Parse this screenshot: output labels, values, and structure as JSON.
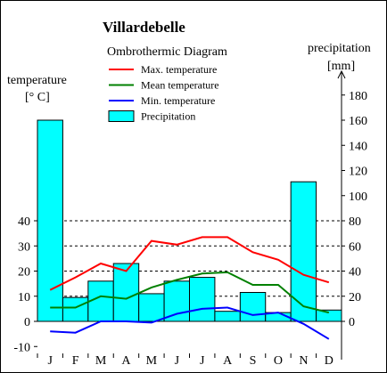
{
  "chart_data": {
    "type": "bar+line",
    "title": "Villardebelle",
    "subtitle": "Ombrothermic Diagram",
    "left_axis": {
      "label_line1": "temperature",
      "label_line2": "[° C]",
      "range": [
        -10,
        40
      ],
      "ticks": [
        -10,
        0,
        10,
        20,
        30,
        40
      ],
      "tick_labels": [
        "-10",
        "0",
        "10",
        "20",
        "30",
        "40"
      ]
    },
    "right_axis": {
      "label_line1": "precipitation",
      "label_line2": "[mm]",
      "range": [
        0,
        180
      ],
      "ticks": [
        0,
        20,
        40,
        60,
        80,
        100,
        120,
        140,
        160,
        180
      ],
      "tick_labels": [
        "0",
        "20",
        "40",
        "60",
        "80",
        "100",
        "120",
        "140",
        "160",
        "180"
      ]
    },
    "categories": [
      "J",
      "F",
      "M",
      "A",
      "M",
      "J",
      "J",
      "A",
      "S",
      "O",
      "N",
      "D"
    ],
    "precipitation": [
      160,
      19,
      32,
      46,
      22,
      32,
      35,
      8,
      23,
      7,
      111,
      9
    ],
    "max_temperature": [
      12.5,
      17.5,
      23,
      20,
      32,
      30.5,
      33.5,
      33.5,
      27.5,
      24.5,
      18.5,
      15.5
    ],
    "mean_temperature": [
      5.5,
      5.5,
      10,
      9,
      13.5,
      16.5,
      19,
      19.5,
      14.5,
      14.5,
      6,
      3.5
    ],
    "min_temperature": [
      -4,
      -4.5,
      0,
      0,
      -0.5,
      3,
      5,
      5.5,
      2.5,
      3.5,
      -1,
      -7
    ],
    "legend": [
      {
        "label": "Max. temperature",
        "color": "#ff0000",
        "kind": "line"
      },
      {
        "label": "Mean temperature",
        "color": "#008000",
        "kind": "line"
      },
      {
        "label": "Min. temperature",
        "color": "#0000ff",
        "kind": "line"
      },
      {
        "label": "Precipitation",
        "color": "#00ffff",
        "kind": "box"
      }
    ],
    "legend_position": "top-center",
    "dashed_gridlines_at_temperature": [
      0,
      10,
      20,
      30,
      40
    ],
    "colors": {
      "bar_fill": "#00ffff",
      "bar_stroke": "#000000",
      "max_line": "#ff0000",
      "mean_line": "#008000",
      "min_line": "#0000ff"
    }
  }
}
